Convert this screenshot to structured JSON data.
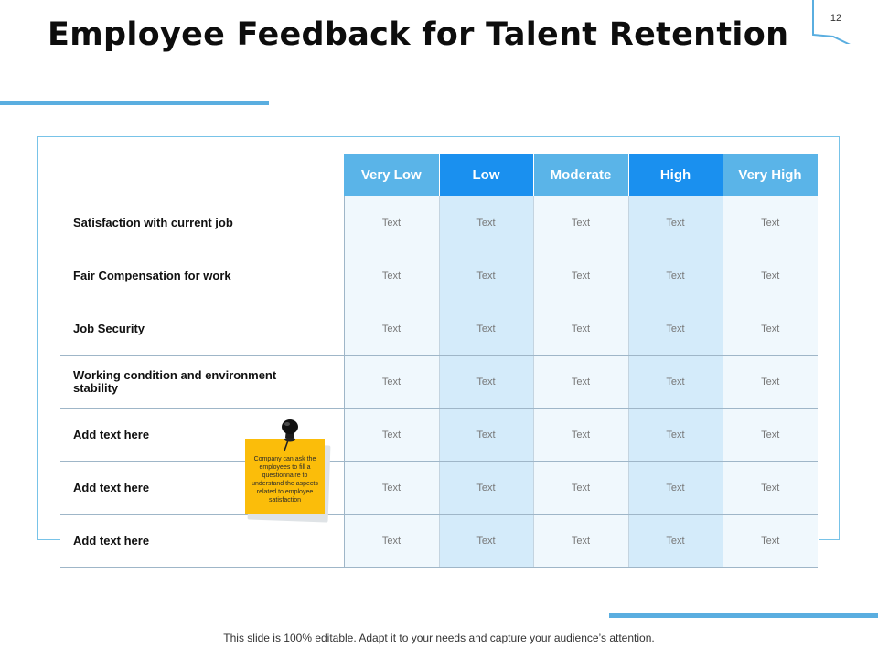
{
  "slide": {
    "title": "Employee Feedback for Talent Retention",
    "page_number": "12",
    "footer": "This slide is 100% editable. Adapt it to your needs and capture your audience’s attention."
  },
  "table": {
    "columns": [
      "Very Low",
      "Low",
      "Moderate",
      "High",
      "Very High"
    ],
    "rows": [
      {
        "label": "Satisfaction with current job",
        "cells": [
          "Text",
          "Text",
          "Text",
          "Text",
          "Text"
        ]
      },
      {
        "label": "Fair Compensation  for work",
        "cells": [
          "Text",
          "Text",
          "Text",
          "Text",
          "Text"
        ]
      },
      {
        "label": "Job Security",
        "cells": [
          "Text",
          "Text",
          "Text",
          "Text",
          "Text"
        ]
      },
      {
        "label": "Working condition and environment stability",
        "cells": [
          "Text",
          "Text",
          "Text",
          "Text",
          "Text"
        ]
      },
      {
        "label": "Add text here",
        "cells": [
          "Text",
          "Text",
          "Text",
          "Text",
          "Text"
        ]
      },
      {
        "label": "Add text here",
        "cells": [
          "Text",
          "Text",
          "Text",
          "Text",
          "Text"
        ]
      },
      {
        "label": "Add text here",
        "cells": [
          "Text",
          "Text",
          "Text",
          "Text",
          "Text"
        ]
      }
    ]
  },
  "sticky_note": {
    "text": "Company can ask the employees to fill a questionnaire to understand the aspects related to employee satisfaction"
  },
  "colors": {
    "accent_blue": "#5aaee0",
    "header_light": "#5ab4e8",
    "header_dark": "#1a90ef",
    "note_yellow": "#fbbd0a"
  }
}
